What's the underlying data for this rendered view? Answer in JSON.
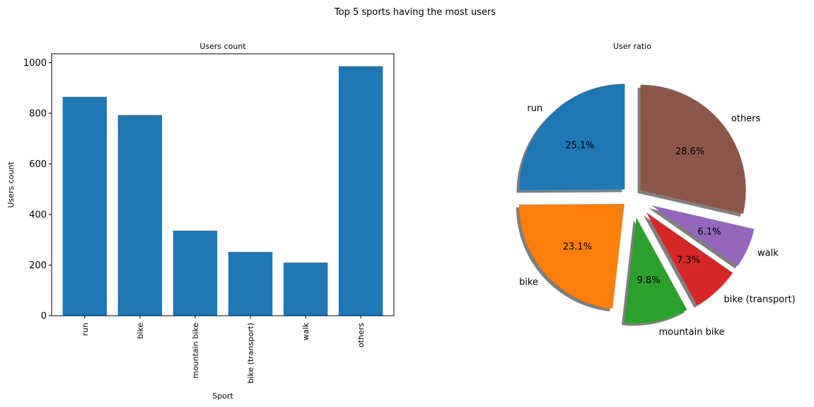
{
  "figure": {
    "suptitle": "Top 5 sports having the most users"
  },
  "chart_data": [
    {
      "type": "bar",
      "title": "Users count",
      "xlabel": "Sport",
      "ylabel": "Users count",
      "categories": [
        "run",
        "bike",
        "mountain bike",
        "bike (transport)",
        "walk",
        "others"
      ],
      "values": [
        865,
        793,
        336,
        252,
        210,
        986
      ],
      "ylim": [
        0,
        1035
      ],
      "yticks": [
        0,
        200,
        400,
        600,
        800,
        1000
      ],
      "color": "#1f77b4",
      "grid": false
    },
    {
      "type": "pie",
      "title": "User ratio",
      "labels": [
        "run",
        "bike",
        "mountain bike",
        "bike (transport)",
        "walk",
        "others"
      ],
      "values": [
        25.1,
        23.1,
        9.8,
        7.3,
        6.1,
        28.6
      ],
      "value_labels": [
        "25.1%",
        "23.1%",
        "9.8%",
        "7.3%",
        "6.1%",
        "28.6%"
      ],
      "colors": [
        "#1f77b4",
        "#ff7f0e",
        "#2ca02c",
        "#d62728",
        "#9467bd",
        "#8c564b"
      ],
      "explode": [
        0.1,
        0.1,
        0.2,
        0.2,
        0.2,
        0.1
      ],
      "shadow": true,
      "startangle_deg": 90,
      "direction": "counterclockwise"
    }
  ]
}
